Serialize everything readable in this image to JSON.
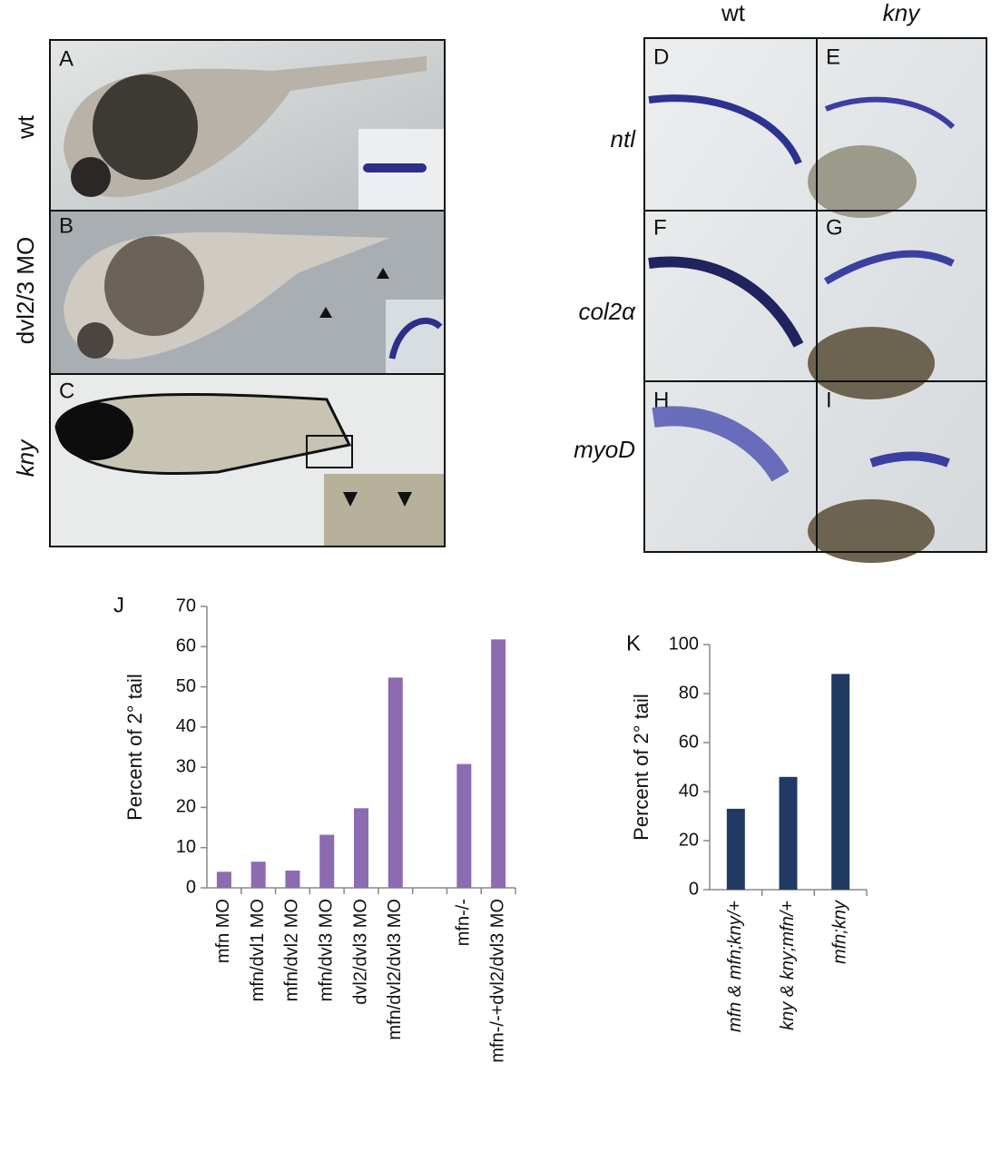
{
  "figure": {
    "panel_labels": [
      "A",
      "B",
      "C",
      "D",
      "E",
      "F",
      "G",
      "H",
      "I"
    ],
    "row_labels": [
      "wt",
      "dvl2/3 MO",
      "kny"
    ],
    "column_labels": [
      "wt",
      "kny"
    ],
    "gene_labels": [
      "ntl",
      "col2α",
      "myoD"
    ]
  },
  "chart_data": [
    {
      "type": "bar",
      "panel_label": "J",
      "y_label": "Percent of 2° tail",
      "categories": [
        "mfn MO",
        "mfn/dvl1 MO",
        "mfn/dvl2 MO",
        "mfn/dvl3 MO",
        "dvl2/dvl3 MO",
        "mfn/dvl2/dvl3 MO",
        null,
        "mfn-/-",
        "mfn-/-+dvl2/dvl3 MO"
      ],
      "values": [
        4,
        6.5,
        4.3,
        13.2,
        19.8,
        52.3,
        null,
        30.8,
        61.8
      ],
      "color": "#8c6bb1",
      "ylim": [
        0,
        70
      ],
      "yticks": [
        0,
        10,
        20,
        30,
        40,
        50,
        60,
        70
      ]
    },
    {
      "type": "bar",
      "panel_label": "K",
      "y_label": "Percent of 2° tail",
      "categories": [
        "mfn & mfn;kny/+",
        "kny & kny;mfn/+",
        "mfn;kny"
      ],
      "values": [
        33,
        46,
        88
      ],
      "color": "#213a63",
      "ylim": [
        0,
        100
      ],
      "yticks": [
        0,
        20,
        40,
        60,
        80,
        100
      ]
    }
  ]
}
